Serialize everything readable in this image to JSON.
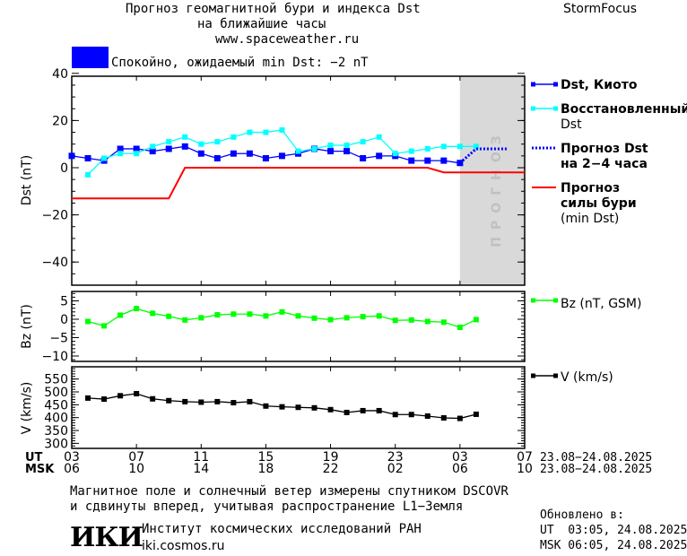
{
  "header": {
    "title_line1": "Прогноз геомагнитной бури и индекса Dst",
    "title_line2": "на ближайшие часы",
    "url": "www.spaceweather.ru",
    "brand": "StormFocus",
    "status_text": "Спокойно, ожидаемый min Dst: −2 nT",
    "status_color": "#0000ff"
  },
  "legend": {
    "dst_kyoto": "Dst, Киото",
    "dst_restored_1": "Восстановленный",
    "dst_restored_2": "Dst",
    "dst_forecast_1": "Прогноз Dst",
    "dst_forecast_2": "на 2−4 часа",
    "storm_forecast_1": "Прогноз",
    "storm_forecast_2": "силы бури",
    "storm_forecast_3": "(min Dst)",
    "bz": "Bz (nT, GSM)",
    "v": "V (km/s)"
  },
  "forecast_label": "ПРОГНОЗ",
  "x_axis": {
    "ut_label": "UT",
    "msk_label": "MSK",
    "ut_ticks": [
      "03",
      "07",
      "11",
      "15",
      "19",
      "23",
      "03",
      "07"
    ],
    "msk_ticks": [
      "06",
      "10",
      "14",
      "18",
      "22",
      "02",
      "06",
      "10"
    ],
    "ut_range": "23.08−24.08.2025",
    "msk_range": "23.08−24.08.2025"
  },
  "footer": {
    "note_line1": "Магнитное поле и солнечный ветер измерены спутником DSCOVR",
    "note_line2": "и сдвинуты вперед, учитывая распространение L1−Земля",
    "logo": "ИКИ",
    "institute": "Институт космических исследований РАН",
    "site": "iki.cosmos.ru",
    "updated_label": "Обновлено в:",
    "updated_ut": "UT  03:05, 24.08.2025",
    "updated_msk": "MSK 06:05, 24.08.2025"
  },
  "chart_data": [
    {
      "type": "line",
      "ylabel": "Dst (nT)",
      "ylim": [
        -52,
        40
      ],
      "yticks": [
        40,
        20,
        0,
        -20,
        -40
      ],
      "x_unit": "hours since 03 UT 23.08",
      "xlim": [
        0,
        28
      ],
      "forecast_region": [
        24,
        28
      ],
      "series": [
        {
          "name": "Dst, Киото",
          "color": "#0000ff",
          "x": [
            0,
            1,
            2,
            3,
            4,
            5,
            6,
            7,
            8,
            9,
            10,
            11,
            12,
            13,
            14,
            15,
            16,
            17,
            18,
            19,
            20,
            21,
            22,
            23,
            24
          ],
          "values": [
            5,
            4,
            3,
            8,
            8,
            7,
            8,
            9,
            6,
            4,
            6,
            6,
            4,
            5,
            6,
            8,
            7,
            7,
            4,
            5,
            5,
            3,
            3,
            3,
            2
          ]
        },
        {
          "name": "Восстановленный Dst",
          "color": "#00ffff",
          "x": [
            1,
            2,
            3,
            4,
            5,
            6,
            7,
            8,
            9,
            10,
            11,
            12,
            13,
            14,
            15,
            16,
            17,
            18,
            19,
            20,
            21,
            22,
            23,
            24,
            25
          ],
          "values": [
            -3,
            4,
            6,
            6,
            9,
            11,
            13,
            10,
            11,
            13,
            15,
            15,
            16,
            7,
            8,
            9.5,
            9.5,
            11,
            13,
            6,
            7,
            8,
            9,
            9,
            9
          ]
        },
        {
          "name": "Прогноз Dst на 2−4 часа",
          "color": "#0000ff",
          "style": "dotted",
          "x": [
            24,
            25,
            27
          ],
          "values": [
            2,
            8,
            8
          ]
        },
        {
          "name": "Прогноз силы бури (min Dst)",
          "color": "#ff0000",
          "x": [
            0,
            6,
            7,
            22,
            23,
            28
          ],
          "values": [
            -13,
            -13,
            0,
            0,
            -2,
            -2
          ]
        }
      ]
    },
    {
      "type": "line",
      "ylabel": "Bz (nT)",
      "ylim": [
        -12,
        7
      ],
      "yticks": [
        5,
        0,
        -5,
        -10
      ],
      "series": [
        {
          "name": "Bz (nT, GSM)",
          "color": "#00ff00",
          "x": [
            1,
            2,
            3,
            4,
            5,
            6,
            7,
            8,
            9,
            10,
            11,
            12,
            13,
            14,
            15,
            16,
            17,
            18,
            19,
            20,
            21,
            22,
            23,
            24,
            25
          ],
          "values": [
            -0.6,
            -1.8,
            1.1,
            2.9,
            1.6,
            0.8,
            -0.2,
            0.4,
            1.2,
            1.4,
            1.4,
            0.9,
            2.0,
            0.9,
            0.3,
            -0.1,
            0.4,
            0.7,
            0.9,
            -0.3,
            -0.2,
            -0.6,
            -0.8,
            -2.2,
            -0.1
          ]
        }
      ]
    },
    {
      "type": "line",
      "ylabel": "V (km/s)",
      "ylim": [
        280,
        590
      ],
      "yticks": [
        550,
        500,
        450,
        400,
        350,
        300
      ],
      "series": [
        {
          "name": "V (km/s)",
          "color": "#000000",
          "x": [
            1,
            2,
            3,
            4,
            5,
            6,
            7,
            8,
            9,
            10,
            11,
            12,
            13,
            14,
            15,
            16,
            17,
            18,
            19,
            20,
            21,
            22,
            23,
            24,
            25
          ],
          "values": [
            476,
            472,
            485,
            493,
            473,
            466,
            462,
            460,
            462,
            458,
            462,
            445,
            442,
            440,
            438,
            431,
            420,
            427,
            427,
            412,
            412,
            406,
            399,
            397,
            413
          ]
        }
      ]
    }
  ]
}
